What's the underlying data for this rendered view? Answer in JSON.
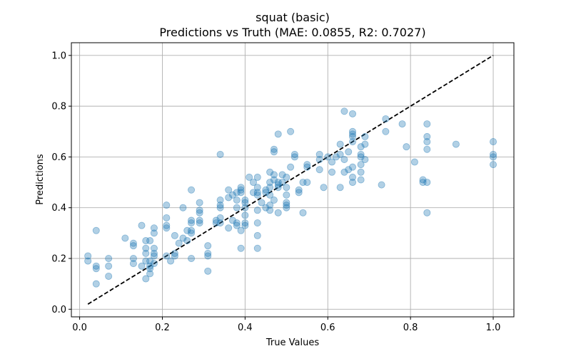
{
  "chart_data": {
    "type": "scatter",
    "title": "squat (basic)",
    "subtitle": "Predictions vs Truth (MAE: 0.0855, R2: 0.7027)",
    "xlabel": "True Values",
    "ylabel": "Predictions",
    "xlim": [
      -0.02,
      1.05
    ],
    "ylim": [
      -0.03,
      1.05
    ],
    "xticks": [
      0.0,
      0.2,
      0.4,
      0.6,
      0.8,
      1.0
    ],
    "xtick_labels": [
      "0.0",
      "0.2",
      "0.4",
      "0.6",
      "0.8",
      "1.0"
    ],
    "yticks": [
      0.0,
      0.2,
      0.4,
      0.6,
      0.8,
      1.0
    ],
    "ytick_labels": [
      "0.0",
      "0.2",
      "0.4",
      "0.6",
      "0.8",
      "1.0"
    ],
    "grid": true,
    "point_color": "#1f77b4",
    "point_alpha": 0.35,
    "reference_line": {
      "x": [
        0.02,
        1.0
      ],
      "y": [
        0.02,
        1.0
      ],
      "style": "dashed",
      "color": "#000000"
    },
    "points": [
      [
        0.02,
        0.21
      ],
      [
        0.02,
        0.19
      ],
      [
        0.04,
        0.31
      ],
      [
        0.04,
        0.17
      ],
      [
        0.04,
        0.16
      ],
      [
        0.04,
        0.1
      ],
      [
        0.07,
        0.2
      ],
      [
        0.07,
        0.17
      ],
      [
        0.07,
        0.13
      ],
      [
        0.11,
        0.28
      ],
      [
        0.13,
        0.26
      ],
      [
        0.13,
        0.25
      ],
      [
        0.13,
        0.2
      ],
      [
        0.13,
        0.18
      ],
      [
        0.15,
        0.33
      ],
      [
        0.15,
        0.17
      ],
      [
        0.16,
        0.12
      ],
      [
        0.16,
        0.19
      ],
      [
        0.16,
        0.22
      ],
      [
        0.16,
        0.24
      ],
      [
        0.16,
        0.27
      ],
      [
        0.17,
        0.16
      ],
      [
        0.17,
        0.14
      ],
      [
        0.17,
        0.17
      ],
      [
        0.17,
        0.19
      ],
      [
        0.17,
        0.27
      ],
      [
        0.18,
        0.3
      ],
      [
        0.18,
        0.32
      ],
      [
        0.18,
        0.21
      ],
      [
        0.18,
        0.22
      ],
      [
        0.18,
        0.24
      ],
      [
        0.18,
        0.18
      ],
      [
        0.21,
        0.41
      ],
      [
        0.21,
        0.36
      ],
      [
        0.21,
        0.33
      ],
      [
        0.21,
        0.32
      ],
      [
        0.21,
        0.21
      ],
      [
        0.22,
        0.19
      ],
      [
        0.23,
        0.29
      ],
      [
        0.23,
        0.22
      ],
      [
        0.23,
        0.21
      ],
      [
        0.24,
        0.26
      ],
      [
        0.25,
        0.4
      ],
      [
        0.25,
        0.28
      ],
      [
        0.26,
        0.31
      ],
      [
        0.26,
        0.27
      ],
      [
        0.27,
        0.47
      ],
      [
        0.27,
        0.35
      ],
      [
        0.27,
        0.34
      ],
      [
        0.27,
        0.31
      ],
      [
        0.27,
        0.3
      ],
      [
        0.27,
        0.2
      ],
      [
        0.29,
        0.42
      ],
      [
        0.29,
        0.39
      ],
      [
        0.29,
        0.38
      ],
      [
        0.29,
        0.35
      ],
      [
        0.29,
        0.34
      ],
      [
        0.31,
        0.25
      ],
      [
        0.31,
        0.22
      ],
      [
        0.31,
        0.21
      ],
      [
        0.31,
        0.15
      ],
      [
        0.33,
        0.35
      ],
      [
        0.33,
        0.34
      ],
      [
        0.34,
        0.61
      ],
      [
        0.34,
        0.43
      ],
      [
        0.34,
        0.41
      ],
      [
        0.34,
        0.4
      ],
      [
        0.34,
        0.36
      ],
      [
        0.34,
        0.34
      ],
      [
        0.36,
        0.47
      ],
      [
        0.36,
        0.44
      ],
      [
        0.36,
        0.32
      ],
      [
        0.37,
        0.45
      ],
      [
        0.37,
        0.35
      ],
      [
        0.38,
        0.46
      ],
      [
        0.38,
        0.43
      ],
      [
        0.38,
        0.4
      ],
      [
        0.38,
        0.34
      ],
      [
        0.38,
        0.33
      ],
      [
        0.39,
        0.48
      ],
      [
        0.39,
        0.47
      ],
      [
        0.39,
        0.46
      ],
      [
        0.39,
        0.24
      ],
      [
        0.39,
        0.31
      ],
      [
        0.4,
        0.43
      ],
      [
        0.4,
        0.42
      ],
      [
        0.4,
        0.4
      ],
      [
        0.4,
        0.37
      ],
      [
        0.4,
        0.34
      ],
      [
        0.4,
        0.33
      ],
      [
        0.41,
        0.52
      ],
      [
        0.42,
        0.5
      ],
      [
        0.42,
        0.46
      ],
      [
        0.43,
        0.52
      ],
      [
        0.43,
        0.48
      ],
      [
        0.43,
        0.46
      ],
      [
        0.43,
        0.45
      ],
      [
        0.43,
        0.39
      ],
      [
        0.43,
        0.34
      ],
      [
        0.43,
        0.29
      ],
      [
        0.43,
        0.24
      ],
      [
        0.44,
        0.42
      ],
      [
        0.45,
        0.47
      ],
      [
        0.45,
        0.46
      ],
      [
        0.45,
        0.4
      ],
      [
        0.46,
        0.54
      ],
      [
        0.46,
        0.5
      ],
      [
        0.46,
        0.48
      ],
      [
        0.46,
        0.45
      ],
      [
        0.46,
        0.41
      ],
      [
        0.46,
        0.39
      ],
      [
        0.47,
        0.63
      ],
      [
        0.47,
        0.62
      ],
      [
        0.47,
        0.53
      ],
      [
        0.47,
        0.51
      ],
      [
        0.47,
        0.43
      ],
      [
        0.48,
        0.69
      ],
      [
        0.48,
        0.5
      ],
      [
        0.48,
        0.49
      ],
      [
        0.48,
        0.48
      ],
      [
        0.48,
        0.38
      ],
      [
        0.49,
        0.53
      ],
      [
        0.49,
        0.5
      ],
      [
        0.5,
        0.52
      ],
      [
        0.5,
        0.48
      ],
      [
        0.5,
        0.45
      ],
      [
        0.5,
        0.42
      ],
      [
        0.5,
        0.41
      ],
      [
        0.5,
        0.4
      ],
      [
        0.51,
        0.7
      ],
      [
        0.51,
        0.56
      ],
      [
        0.52,
        0.61
      ],
      [
        0.52,
        0.6
      ],
      [
        0.53,
        0.47
      ],
      [
        0.53,
        0.46
      ],
      [
        0.54,
        0.5
      ],
      [
        0.54,
        0.38
      ],
      [
        0.55,
        0.57
      ],
      [
        0.55,
        0.56
      ],
      [
        0.55,
        0.5
      ],
      [
        0.58,
        0.61
      ],
      [
        0.58,
        0.59
      ],
      [
        0.58,
        0.55
      ],
      [
        0.59,
        0.48
      ],
      [
        0.6,
        0.6
      ],
      [
        0.61,
        0.58
      ],
      [
        0.61,
        0.54
      ],
      [
        0.62,
        0.6
      ],
      [
        0.63,
        0.65
      ],
      [
        0.63,
        0.61
      ],
      [
        0.63,
        0.48
      ],
      [
        0.64,
        0.59
      ],
      [
        0.64,
        0.54
      ],
      [
        0.64,
        0.78
      ],
      [
        0.65,
        0.62
      ],
      [
        0.65,
        0.55
      ],
      [
        0.66,
        0.77
      ],
      [
        0.66,
        0.7
      ],
      [
        0.66,
        0.69
      ],
      [
        0.66,
        0.68
      ],
      [
        0.66,
        0.66
      ],
      [
        0.66,
        0.56
      ],
      [
        0.66,
        0.52
      ],
      [
        0.66,
        0.5
      ],
      [
        0.68,
        0.64
      ],
      [
        0.68,
        0.61
      ],
      [
        0.68,
        0.6
      ],
      [
        0.68,
        0.57
      ],
      [
        0.68,
        0.54
      ],
      [
        0.68,
        0.51
      ],
      [
        0.69,
        0.68
      ],
      [
        0.69,
        0.65
      ],
      [
        0.69,
        0.59
      ],
      [
        0.73,
        0.49
      ],
      [
        0.74,
        0.75
      ],
      [
        0.74,
        0.7
      ],
      [
        0.78,
        0.73
      ],
      [
        0.79,
        0.64
      ],
      [
        0.81,
        0.58
      ],
      [
        0.83,
        0.51
      ],
      [
        0.83,
        0.5
      ],
      [
        0.84,
        0.68
      ],
      [
        0.84,
        0.66
      ],
      [
        0.84,
        0.63
      ],
      [
        0.84,
        0.73
      ],
      [
        0.84,
        0.38
      ],
      [
        0.84,
        0.5
      ],
      [
        0.91,
        0.65
      ],
      [
        1.0,
        0.66
      ],
      [
        1.0,
        0.61
      ],
      [
        1.0,
        0.6
      ],
      [
        1.0,
        0.57
      ]
    ]
  }
}
